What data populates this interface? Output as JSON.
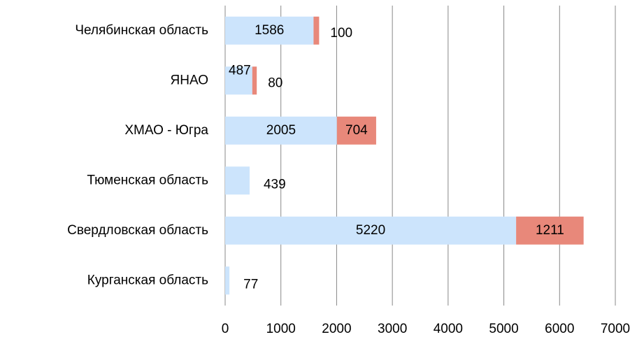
{
  "chart_data": {
    "type": "bar",
    "orientation": "horizontal",
    "stacked": true,
    "categories": [
      "Челябинская область",
      "ЯНАО",
      "ХМАО - Югра",
      "Тюменская область",
      "Свердловская область",
      "Курганская область"
    ],
    "series": [
      {
        "color": "#cce4fc",
        "values": [
          1586,
          487,
          2005,
          439,
          5220,
          77
        ]
      },
      {
        "color": "#e8887a",
        "values": [
          100,
          80,
          704,
          null,
          1211,
          null
        ]
      }
    ],
    "xlim": [
      0,
      7000
    ],
    "xticks": [
      0,
      1000,
      2000,
      3000,
      4000,
      5000,
      6000,
      7000
    ],
    "grid": true
  }
}
